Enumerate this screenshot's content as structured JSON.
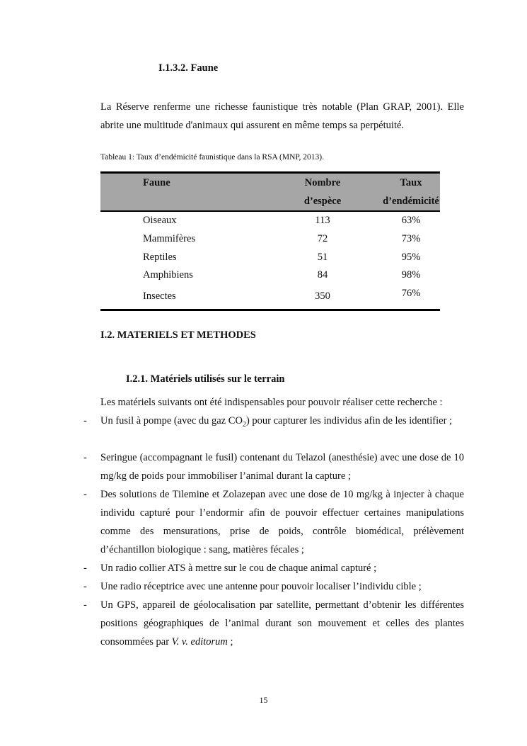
{
  "section_faune": {
    "heading": "I.1.3.2. Faune",
    "paragraph": "La Réserve renferme une richesse faunistique très notable (Plan GRAP, 2001). Elle abrite une multitude d'animaux qui assurent en même temps sa perpétuité."
  },
  "table": {
    "caption": "Tableau 1: Taux d’endémicité faunistique dans la RSA (MNP, 2013).",
    "headers": [
      {
        "line1": "Faune",
        "line2": ""
      },
      {
        "line1": "Nombre",
        "line2": "d’espèce"
      },
      {
        "line1": "Taux",
        "line2": "d’endémicité"
      }
    ],
    "rows": [
      [
        "Oiseaux",
        "113",
        "63%"
      ],
      [
        "Mammifères",
        "72",
        "73%"
      ],
      [
        "Reptiles",
        "51",
        "95%"
      ],
      [
        "Amphibiens",
        "84",
        "98%"
      ],
      [
        "Insectes",
        "350",
        "76%"
      ]
    ],
    "header_bg": "#a6a6a6"
  },
  "section_methodes": {
    "heading": "I.2. MATERIELS ET METHODES",
    "subheading": "I.2.1. Matériels utilisés sur le terrain",
    "intro": "Les matériels suivants ont été indispensables pour pouvoir réaliser cette recherche :",
    "bullet_marker": "-",
    "items": [
      {
        "before": "Un fusil à pompe (avec du gaz CO",
        "sub": "2",
        "after": ") pour capturer les individus afin de les identifier ;"
      },
      {
        "before": "Seringue (accompagnant le fusil) contenant du Telazol (anesthésie) avec une dose de 10 mg/kg de poids pour immobiliser l’animal durant la capture ;"
      },
      {
        "before": "Des solutions de Tilemine et Zolazepan avec une dose de 10 mg/kg à injecter à chaque individu capturé pour l’endormir afin de pouvoir effectuer certaines manipulations comme des mensurations, prise de poids, contrôle biomédical, prélèvement d’échantillon biologique : sang, matières fécales ;"
      },
      {
        "before": "Un radio collier ATS à mettre sur le cou de chaque animal capturé ;"
      },
      {
        "before": "Une radio réceptrice avec une antenne pour pouvoir localiser l’individu cible ;"
      },
      {
        "before": "Un GPS, appareil de géolocalisation par satellite, permettant d’obtenir les différentes positions géographiques de l’animal durant son mouvement et celles des plantes consommées par ",
        "italic": "V. v. editorum",
        "after": " ;"
      }
    ]
  },
  "page_number": "15"
}
